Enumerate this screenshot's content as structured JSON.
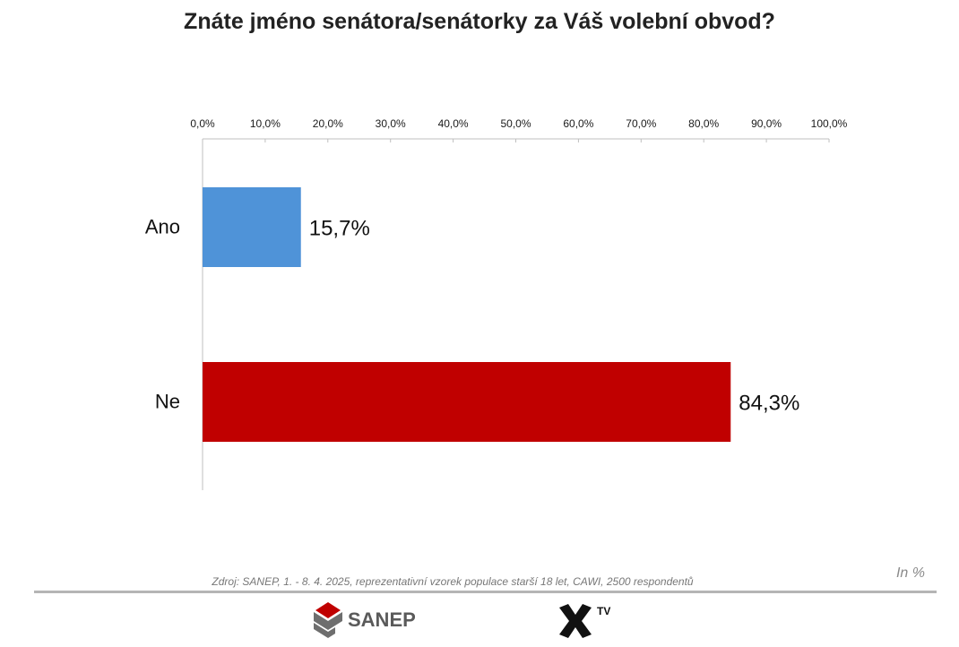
{
  "title": "Znáte jméno senátora/senátorky za Váš volební obvod?",
  "source_note": "Zdroj: SANEP, 1. - 8. 4. 2025, reprezentativní vzorek populace starší 18 let, CAWI, 2500 respondentů",
  "unit_note": "In %",
  "logos": {
    "sanep_text": "SANEP",
    "tv_text": "TV"
  },
  "colors": {
    "ano": "#4f93d8",
    "ne": "#c00000",
    "axis": "#bfbfbf"
  },
  "chart_data": {
    "type": "bar",
    "orientation": "horizontal",
    "categories": [
      "Ano",
      "Ne"
    ],
    "values": [
      15.7,
      84.3
    ],
    "data_labels": [
      "15,7%",
      "84,3%"
    ],
    "xlim": [
      0,
      100
    ],
    "xticks": [
      "0,0%",
      "10,0%",
      "20,0%",
      "30,0%",
      "40,0%",
      "50,0%",
      "60,0%",
      "70,0%",
      "80,0%",
      "90,0%",
      "100,0%"
    ],
    "axis_position": "top",
    "grid": false,
    "legend": "none"
  }
}
